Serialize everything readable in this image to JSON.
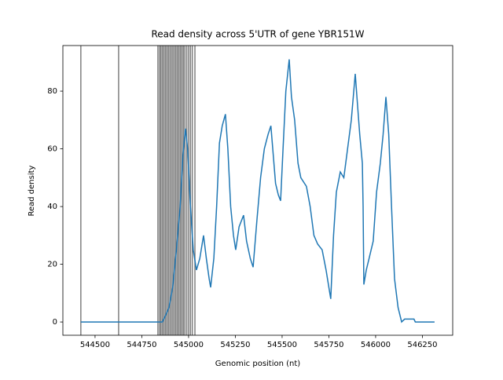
{
  "chart_data": {
    "type": "line",
    "title": "Read density across 5'UTR of gene YBR151W",
    "x_label": "Genomic position (nt)",
    "y_label": "Read density",
    "x": [
      544424,
      544860,
      544875,
      544895,
      544915,
      544935,
      544955,
      544970,
      544983,
      544995,
      545010,
      545025,
      545042,
      545060,
      545080,
      545095,
      545110,
      545118,
      545135,
      545150,
      545165,
      545180,
      545197,
      545210,
      545225,
      545240,
      545252,
      545270,
      545294,
      545310,
      545330,
      545345,
      545365,
      545385,
      545405,
      545425,
      545440,
      545450,
      545465,
      545480,
      545492,
      545505,
      545520,
      545538,
      545550,
      545567,
      545585,
      545600,
      545630,
      545650,
      545670,
      545690,
      545714,
      545735,
      545750,
      545760,
      545775,
      545790,
      545811,
      545830,
      545850,
      545870,
      545891,
      545900,
      545915,
      545929,
      545933,
      545937,
      545950,
      545965,
      545987,
      546005,
      546025,
      546040,
      546055,
      546070,
      546085,
      546101,
      546120,
      546139,
      546155,
      546205,
      546212,
      546315
    ],
    "series": [
      {
        "name": "Read density",
        "color": "#1f77b4",
        "values": [
          0,
          0,
          2,
          5,
          12,
          25,
          40,
          58,
          67,
          60,
          40,
          25,
          18,
          22,
          30,
          22,
          15,
          12,
          22,
          40,
          62,
          68,
          72,
          60,
          40,
          30,
          25,
          33,
          37,
          28,
          22,
          19,
          35,
          50,
          60,
          65,
          68,
          60,
          48,
          44,
          42,
          60,
          80,
          91,
          78,
          70,
          55,
          50,
          47,
          40,
          30,
          27,
          25,
          18,
          12,
          8,
          30,
          45,
          52,
          50,
          60,
          70,
          86,
          78,
          65,
          55,
          40,
          13,
          18,
          22,
          28,
          45,
          55,
          65,
          78,
          65,
          40,
          15,
          5,
          0,
          1,
          1,
          0,
          0
        ]
      }
    ],
    "vlines": [
      544424,
      544626,
      544836,
      544845,
      544852,
      544860,
      544868,
      544876,
      544884,
      544892,
      544900,
      544908,
      544916,
      544924,
      544932,
      544940,
      544948,
      544956,
      544964,
      544972,
      544980,
      544990,
      545000,
      545010,
      545020,
      545034
    ],
    "vline_color": "#000000",
    "xlim": [
      544328,
      546412
    ],
    "ylim": [
      -4.6,
      95.8
    ],
    "xticks": [
      544500,
      544750,
      545000,
      545250,
      545500,
      545750,
      546000,
      546250
    ],
    "yticks": [
      0,
      20,
      40,
      60,
      80
    ]
  }
}
